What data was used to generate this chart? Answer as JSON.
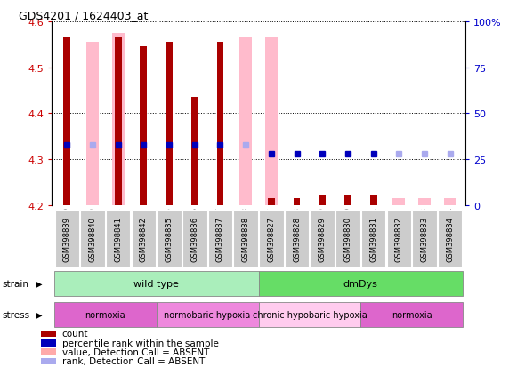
{
  "title": "GDS4201 / 1624403_at",
  "samples": [
    "GSM398839",
    "GSM398840",
    "GSM398841",
    "GSM398842",
    "GSM398835",
    "GSM398836",
    "GSM398837",
    "GSM398838",
    "GSM398827",
    "GSM398828",
    "GSM398829",
    "GSM398830",
    "GSM398831",
    "GSM398832",
    "GSM398833",
    "GSM398834"
  ],
  "ylim": [
    4.2,
    4.6
  ],
  "y2lim": [
    0,
    100
  ],
  "yticks": [
    4.2,
    4.3,
    4.4,
    4.5,
    4.6
  ],
  "y2ticks": [
    0,
    25,
    50,
    75,
    100
  ],
  "red_values": [
    4.565,
    0,
    4.565,
    4.545,
    4.555,
    4.435,
    4.555,
    0,
    4.215,
    4.215,
    4.22,
    4.22,
    4.22,
    0,
    0,
    0
  ],
  "pink_values": [
    0,
    4.555,
    4.575,
    0,
    0,
    0,
    0,
    4.565,
    4.565,
    0,
    0,
    0,
    0,
    4.215,
    4.215,
    4.215
  ],
  "blue_values": [
    33,
    0,
    33,
    33,
    33,
    33,
    33,
    0,
    28,
    28,
    28,
    28,
    28,
    0,
    0,
    0
  ],
  "light_blue_values": [
    0,
    33,
    0,
    0,
    0,
    0,
    0,
    33,
    0,
    0,
    0,
    0,
    0,
    28,
    28,
    28
  ],
  "strain_groups": [
    {
      "label": "wild type",
      "start": 0,
      "end": 8,
      "color": "#aaeebb"
    },
    {
      "label": "dmDys",
      "start": 8,
      "end": 16,
      "color": "#66dd66"
    }
  ],
  "stress_groups": [
    {
      "label": "normoxia",
      "start": 0,
      "end": 4,
      "color": "#dd66cc"
    },
    {
      "label": "normobaric hypoxia",
      "start": 4,
      "end": 8,
      "color": "#ee88dd"
    },
    {
      "label": "chronic hypobaric hypoxia",
      "start": 8,
      "end": 12,
      "color": "#ffccee"
    },
    {
      "label": "normoxia",
      "start": 12,
      "end": 16,
      "color": "#ee88dd"
    }
  ],
  "legend_items": [
    {
      "label": "count",
      "color": "#aa0000",
      "shape": "rect"
    },
    {
      "label": "percentile rank within the sample",
      "color": "#0000bb",
      "shape": "rect"
    },
    {
      "label": "value, Detection Call = ABSENT",
      "color": "#ffaaaa",
      "shape": "rect"
    },
    {
      "label": "rank, Detection Call = ABSENT",
      "color": "#aaaaee",
      "shape": "rect"
    }
  ],
  "bar_width": 0.5,
  "marker_size": 5,
  "left_tick_color": "#cc0000",
  "right_tick_color": "#0000cc"
}
